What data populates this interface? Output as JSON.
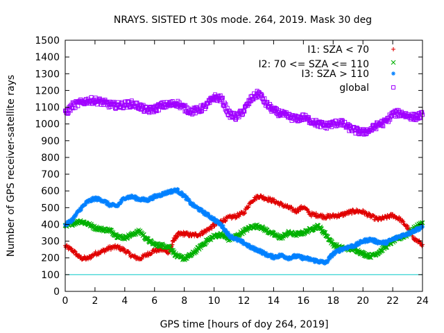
{
  "chart_data": {
    "type": "scatter",
    "title": "NRAYS. SISTED rt 30s mode. 264, 2019. Mask 30 deg",
    "xlabel": "GPS time [hours of doy 264, 2019]",
    "ylabel": "Number of GPS receiver-satellite rays",
    "xlim": [
      0,
      24
    ],
    "ylim": [
      0,
      1500
    ],
    "xticks": [
      0,
      2,
      4,
      6,
      8,
      10,
      12,
      14,
      16,
      18,
      20,
      22,
      24
    ],
    "yticks": [
      0,
      100,
      200,
      300,
      400,
      500,
      600,
      700,
      800,
      900,
      1000,
      1100,
      1200,
      1300,
      1400,
      1500
    ],
    "reference_line": {
      "y": 100,
      "color": "#00c8c8"
    },
    "series": [
      {
        "name": "I1: SZA < 70",
        "marker": "+",
        "color": "#e00000",
        "noise": 12,
        "points": [
          [
            0,
            270
          ],
          [
            0.5,
            245
          ],
          [
            1,
            200
          ],
          [
            1.5,
            195
          ],
          [
            2,
            225
          ],
          [
            2.5,
            240
          ],
          [
            3,
            260
          ],
          [
            3.5,
            265
          ],
          [
            4,
            245
          ],
          [
            4.5,
            210
          ],
          [
            5,
            195
          ],
          [
            5.5,
            220
          ],
          [
            6,
            245
          ],
          [
            6.5,
            250
          ],
          [
            7,
            235
          ],
          [
            7.3,
            310
          ],
          [
            7.6,
            340
          ],
          [
            8,
            345
          ],
          [
            8.5,
            335
          ],
          [
            9,
            340
          ],
          [
            9.5,
            365
          ],
          [
            10,
            395
          ],
          [
            10.5,
            420
          ],
          [
            11,
            440
          ],
          [
            11.5,
            450
          ],
          [
            12,
            470
          ],
          [
            12.5,
            540
          ],
          [
            13,
            570
          ],
          [
            13.5,
            555
          ],
          [
            14,
            540
          ],
          [
            14.5,
            520
          ],
          [
            15,
            500
          ],
          [
            15.5,
            480
          ],
          [
            16,
            505
          ],
          [
            16.5,
            460
          ],
          [
            17,
            455
          ],
          [
            17.5,
            445
          ],
          [
            18,
            450
          ],
          [
            18.5,
            455
          ],
          [
            19,
            470
          ],
          [
            19.5,
            480
          ],
          [
            20,
            475
          ],
          [
            20.5,
            450
          ],
          [
            21,
            430
          ],
          [
            21.5,
            440
          ],
          [
            22,
            455
          ],
          [
            22.5,
            430
          ],
          [
            23,
            380
          ],
          [
            23.5,
            310
          ],
          [
            24,
            280
          ]
        ]
      },
      {
        "name": "I2: 70 <= SZA <= 110",
        "marker": "x",
        "color": "#00b000",
        "noise": 10,
        "points": [
          [
            0,
            385
          ],
          [
            0.5,
            405
          ],
          [
            1,
            420
          ],
          [
            1.5,
            405
          ],
          [
            2,
            380
          ],
          [
            2.5,
            370
          ],
          [
            3,
            365
          ],
          [
            3.5,
            330
          ],
          [
            4,
            320
          ],
          [
            4.5,
            340
          ],
          [
            5,
            360
          ],
          [
            5.5,
            310
          ],
          [
            6,
            280
          ],
          [
            6.5,
            275
          ],
          [
            7,
            265
          ],
          [
            7.5,
            210
          ],
          [
            8,
            195
          ],
          [
            8.5,
            220
          ],
          [
            9,
            260
          ],
          [
            9.5,
            300
          ],
          [
            10,
            330
          ],
          [
            10.5,
            340
          ],
          [
            11,
            310
          ],
          [
            11.5,
            330
          ],
          [
            12,
            360
          ],
          [
            12.5,
            385
          ],
          [
            13,
            390
          ],
          [
            13.5,
            365
          ],
          [
            14,
            340
          ],
          [
            14.5,
            320
          ],
          [
            15,
            350
          ],
          [
            15.5,
            340
          ],
          [
            16,
            350
          ],
          [
            16.5,
            370
          ],
          [
            17,
            390
          ],
          [
            17.5,
            340
          ],
          [
            18,
            280
          ],
          [
            18.5,
            260
          ],
          [
            19,
            255
          ],
          [
            19.5,
            250
          ],
          [
            20,
            225
          ],
          [
            20.5,
            210
          ],
          [
            21,
            230
          ],
          [
            21.5,
            265
          ],
          [
            22,
            300
          ],
          [
            22.5,
            320
          ],
          [
            23,
            340
          ],
          [
            23.5,
            380
          ],
          [
            24,
            410
          ]
        ]
      },
      {
        "name": "I3: SZA > 110",
        "marker": "*",
        "color": "#0080ff",
        "noise": 10,
        "points": [
          [
            0,
            395
          ],
          [
            0.5,
            430
          ],
          [
            1,
            490
          ],
          [
            1.5,
            535
          ],
          [
            2,
            555
          ],
          [
            2.5,
            545
          ],
          [
            3,
            515
          ],
          [
            3.5,
            510
          ],
          [
            4,
            560
          ],
          [
            4.5,
            565
          ],
          [
            5,
            550
          ],
          [
            5.5,
            545
          ],
          [
            6,
            565
          ],
          [
            6.5,
            580
          ],
          [
            7,
            595
          ],
          [
            7.5,
            605
          ],
          [
            8,
            570
          ],
          [
            8.5,
            520
          ],
          [
            9,
            490
          ],
          [
            9.5,
            460
          ],
          [
            10,
            430
          ],
          [
            10.5,
            395
          ],
          [
            11,
            335
          ],
          [
            11.5,
            310
          ],
          [
            12,
            290
          ],
          [
            12.5,
            260
          ],
          [
            13,
            245
          ],
          [
            13.5,
            220
          ],
          [
            14,
            205
          ],
          [
            14.5,
            215
          ],
          [
            15,
            200
          ],
          [
            15.5,
            210
          ],
          [
            16,
            200
          ],
          [
            16.5,
            190
          ],
          [
            17,
            180
          ],
          [
            17.5,
            170
          ],
          [
            18,
            225
          ],
          [
            18.5,
            250
          ],
          [
            19,
            265
          ],
          [
            19.5,
            275
          ],
          [
            20,
            300
          ],
          [
            20.5,
            310
          ],
          [
            21,
            295
          ],
          [
            21.5,
            290
          ],
          [
            22,
            310
          ],
          [
            22.5,
            330
          ],
          [
            23,
            345
          ],
          [
            23.5,
            365
          ],
          [
            24,
            385
          ]
        ]
      },
      {
        "name": "global",
        "marker": "square",
        "color": "#a000ff",
        "noise": 20,
        "points": [
          [
            0,
            1060
          ],
          [
            0.5,
            1110
          ],
          [
            1,
            1125
          ],
          [
            1.5,
            1140
          ],
          [
            2,
            1140
          ],
          [
            2.5,
            1130
          ],
          [
            3,
            1115
          ],
          [
            3.5,
            1110
          ],
          [
            4,
            1115
          ],
          [
            4.5,
            1120
          ],
          [
            5,
            1105
          ],
          [
            5.5,
            1080
          ],
          [
            6,
            1090
          ],
          [
            6.5,
            1110
          ],
          [
            7,
            1115
          ],
          [
            7.5,
            1125
          ],
          [
            8,
            1095
          ],
          [
            8.5,
            1075
          ],
          [
            9,
            1085
          ],
          [
            9.5,
            1110
          ],
          [
            10,
            1160
          ],
          [
            10.5,
            1150
          ],
          [
            11,
            1060
          ],
          [
            11.5,
            1040
          ],
          [
            12,
            1080
          ],
          [
            12.5,
            1150
          ],
          [
            13,
            1185
          ],
          [
            13.5,
            1120
          ],
          [
            14,
            1080
          ],
          [
            14.5,
            1060
          ],
          [
            15,
            1045
          ],
          [
            15.5,
            1030
          ],
          [
            16,
            1040
          ],
          [
            16.5,
            1020
          ],
          [
            17,
            1000
          ],
          [
            17.5,
            990
          ],
          [
            18,
            1000
          ],
          [
            18.5,
            1010
          ],
          [
            19,
            980
          ],
          [
            19.5,
            960
          ],
          [
            20,
            950
          ],
          [
            20.5,
            965
          ],
          [
            21,
            995
          ],
          [
            21.5,
            1010
          ],
          [
            22,
            1060
          ],
          [
            22.5,
            1065
          ],
          [
            23,
            1050
          ],
          [
            23.5,
            1040
          ],
          [
            24,
            1055
          ]
        ]
      }
    ],
    "legend_position": "top-right"
  }
}
